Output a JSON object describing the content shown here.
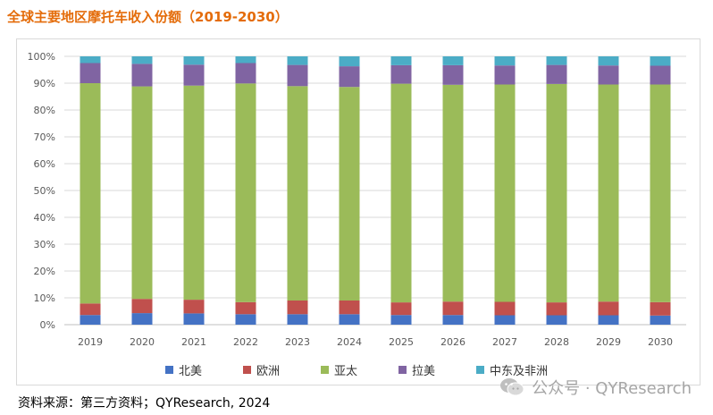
{
  "title": "全球主要地区摩托车收入份额（2019-2030）",
  "source": "资料来源：第三方资料；QYResearch, 2024",
  "watermark": "公众号 · QYResearch",
  "chart_data": {
    "type": "bar",
    "stacked": true,
    "percent": true,
    "categories": [
      "2019",
      "2020",
      "2021",
      "2022",
      "2023",
      "2024",
      "2025",
      "2026",
      "2027",
      "2028",
      "2029",
      "2030"
    ],
    "y_ticks": [
      "0%",
      "10%",
      "20%",
      "30%",
      "40%",
      "50%",
      "60%",
      "70%",
      "80%",
      "90%",
      "100%"
    ],
    "ylim": [
      0,
      100
    ],
    "grid": true,
    "legend_position": "bottom",
    "series": [
      {
        "name": "北美",
        "color": "#4472c4",
        "values": [
          3.6,
          4.3,
          4.2,
          3.9,
          3.9,
          3.9,
          3.6,
          3.6,
          3.5,
          3.5,
          3.5,
          3.4
        ]
      },
      {
        "name": "欧洲",
        "color": "#c0504d",
        "values": [
          4.3,
          5.3,
          5.1,
          4.5,
          5.1,
          5.1,
          4.7,
          5.0,
          5.0,
          4.8,
          5.1,
          5.0
        ]
      },
      {
        "name": "亚太",
        "color": "#9bbb59",
        "values": [
          82.1,
          79.2,
          79.8,
          81.5,
          79.9,
          79.6,
          81.5,
          80.8,
          81.0,
          81.4,
          80.9,
          81.1
        ]
      },
      {
        "name": "拉美",
        "color": "#8064a2",
        "values": [
          7.5,
          8.4,
          7.8,
          7.6,
          7.9,
          7.7,
          6.9,
          7.3,
          7.1,
          7.1,
          7.1,
          7.0
        ]
      },
      {
        "name": "中东及非洲",
        "color": "#4bacc6",
        "values": [
          2.5,
          2.8,
          3.1,
          2.5,
          3.2,
          3.7,
          3.3,
          3.3,
          3.4,
          3.2,
          3.4,
          3.5
        ]
      }
    ]
  }
}
